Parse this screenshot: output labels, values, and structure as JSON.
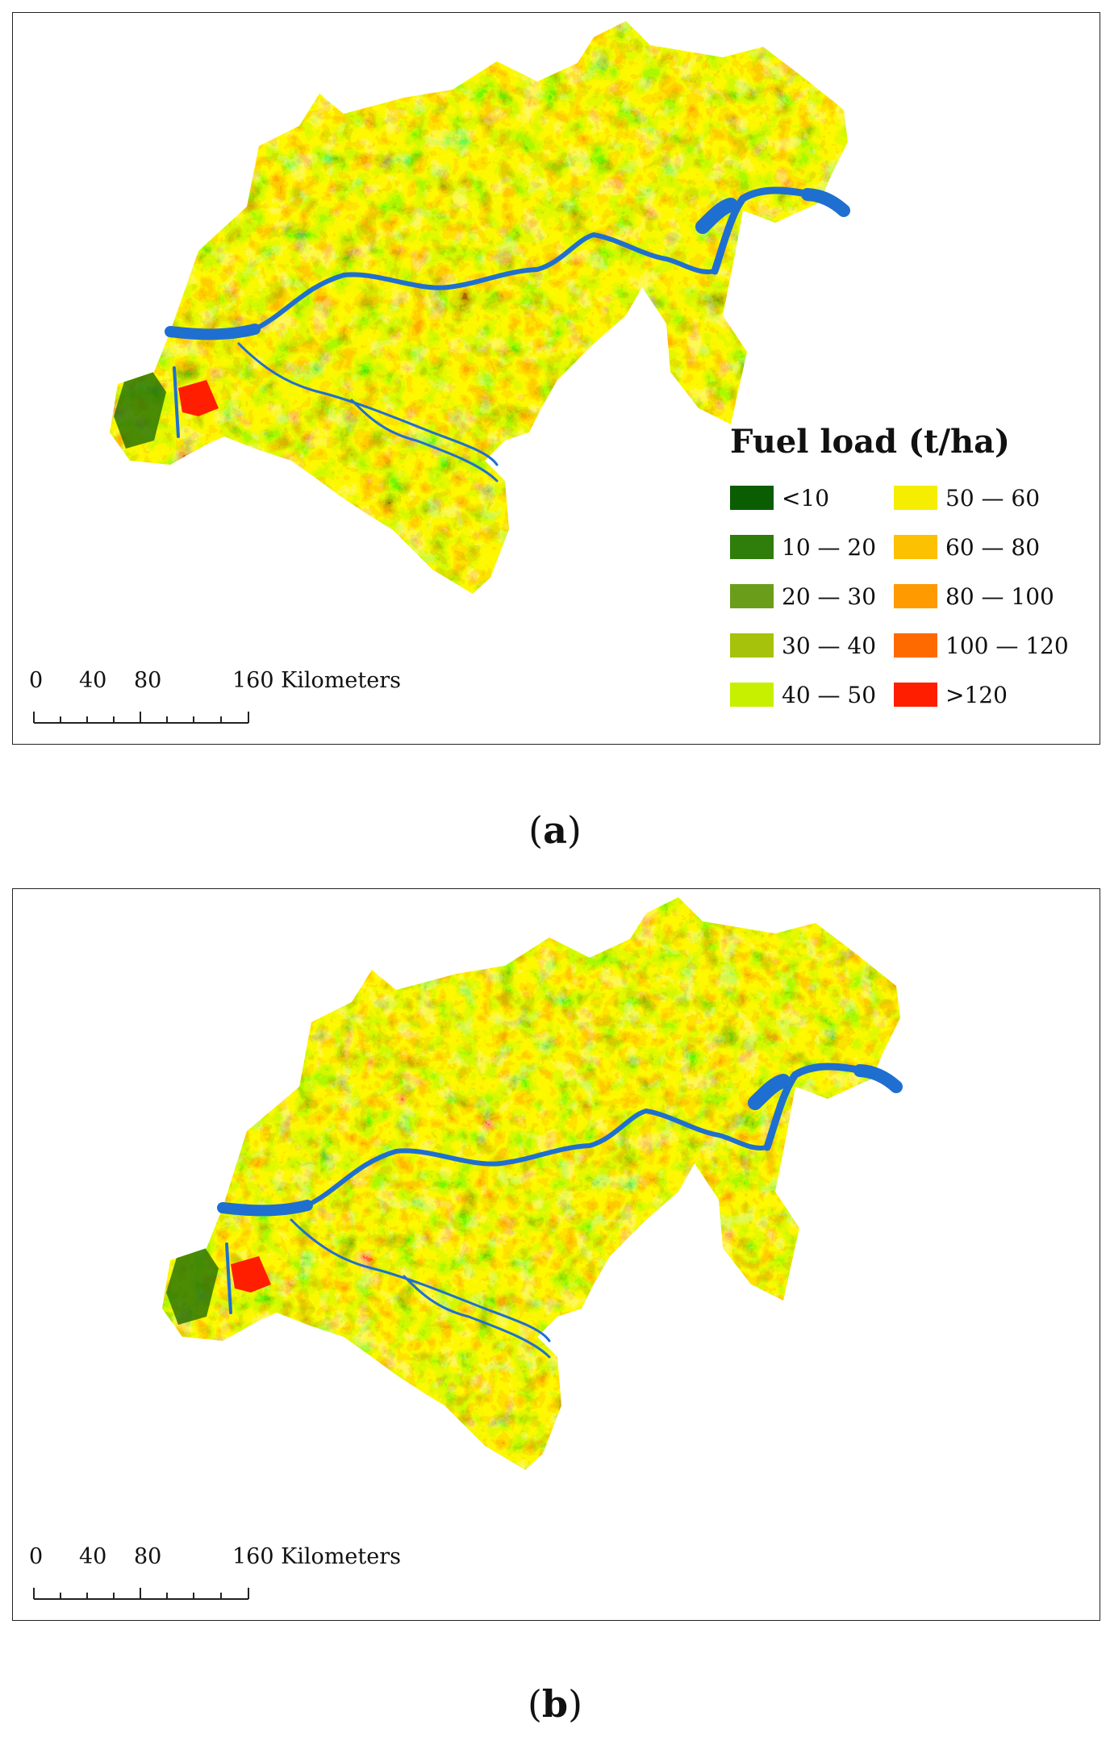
{
  "panels": [
    {
      "id": "a",
      "caption_open": "(",
      "caption_letter": "a",
      "caption_close": ")",
      "scale": {
        "labels": [
          "0",
          "40",
          "80",
          "160 Kilometers"
        ]
      },
      "legend": {
        "title": "Fuel load (t/ha)",
        "classes": [
          {
            "label": "<10",
            "color": "#0a5d00"
          },
          {
            "label": "10 — 20",
            "color": "#2f7d0a"
          },
          {
            "label": "20 — 30",
            "color": "#6a9e1a"
          },
          {
            "label": "30 — 40",
            "color": "#a7c20a"
          },
          {
            "label": "40 — 50",
            "color": "#c6f000"
          },
          {
            "label": "50 — 60",
            "color": "#f5ee00"
          },
          {
            "label": "60 — 80",
            "color": "#fcc100"
          },
          {
            "label": "80 — 100",
            "color": "#ff9a00"
          },
          {
            "label": "100 — 120",
            "color": "#ff6a00"
          },
          {
            "label": ">120",
            "color": "#ff1e00"
          }
        ]
      }
    },
    {
      "id": "b",
      "caption_open": "(",
      "caption_letter": "b",
      "caption_close": ")",
      "scale": {
        "labels": [
          "0",
          "40",
          "80",
          "160 Kilometers"
        ]
      }
    }
  ],
  "colors": {
    "water": "#1f6fd0",
    "border": "#222222"
  }
}
